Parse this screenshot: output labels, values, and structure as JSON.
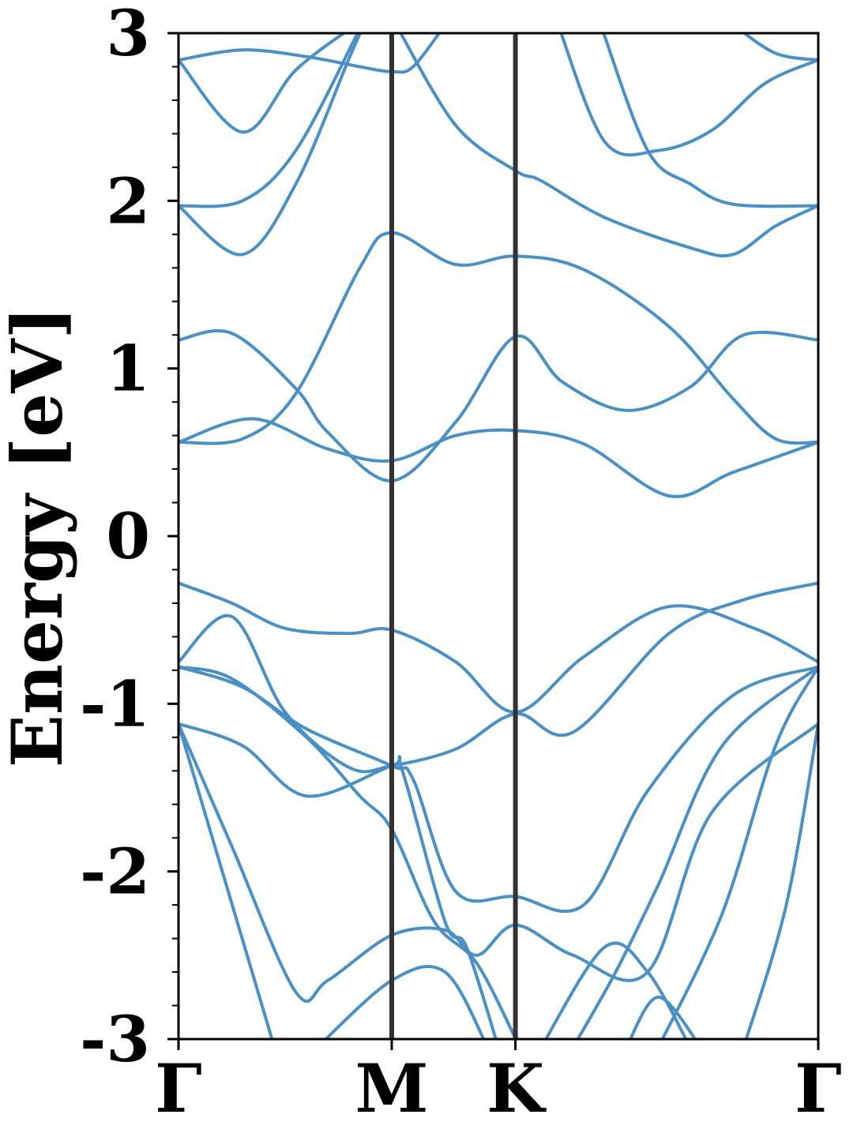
{
  "chart_data": {
    "type": "line",
    "title": "",
    "xlabel": "",
    "ylabel": "Energy [eV]",
    "ylim": [
      -3,
      3
    ],
    "x_range": [
      0,
      3
    ],
    "y_ticks": [
      -3,
      -2,
      -1,
      0,
      1,
      2,
      3
    ],
    "y_tick_labels": [
      "-3",
      "-2",
      "-1",
      "0",
      "1",
      "2",
      "3"
    ],
    "y_minor_step": 0.2,
    "high_symmetry_points": [
      {
        "label": "Γ",
        "x": 0
      },
      {
        "label": "M",
        "x": 1
      },
      {
        "label": "K",
        "x": 1.58
      },
      {
        "label": "Γ",
        "x": 3
      }
    ],
    "grid": false,
    "legend": "none",
    "colors": {
      "bands": "#4a90c4",
      "kpoint_lines": "#333333",
      "axes": "#000000"
    },
    "series": [
      {
        "values": [
          [
            0,
            2.84
          ],
          [
            0.3,
            2.41
          ],
          [
            0.55,
            2.78
          ],
          [
            0.83,
            3.05
          ]
        ]
      },
      {
        "values": [
          [
            0,
            2.84
          ],
          [
            0.3,
            2.9
          ],
          [
            0.6,
            2.86
          ],
          [
            0.85,
            2.8
          ],
          [
            1,
            2.77
          ],
          [
            1.1,
            2.8
          ],
          [
            1.25,
            3.05
          ]
        ]
      },
      {
        "values": [
          [
            0,
            1.97
          ],
          [
            0.3,
            2.0
          ],
          [
            0.55,
            2.3
          ],
          [
            0.84,
            3.0
          ]
        ]
      },
      {
        "values": [
          [
            0,
            1.97
          ],
          [
            0.3,
            1.68
          ],
          [
            0.55,
            2.1
          ],
          [
            0.8,
            2.85
          ],
          [
            0.87,
            3.05
          ]
        ]
      },
      {
        "values": [
          [
            1.02,
            3.05
          ],
          [
            1.3,
            2.45
          ],
          [
            1.58,
            2.18
          ],
          [
            1.7,
            2.12
          ],
          [
            2,
            1.9
          ],
          [
            2.4,
            1.72
          ],
          [
            2.6,
            1.68
          ],
          [
            2.8,
            1.85
          ],
          [
            3,
            1.97
          ]
        ]
      },
      {
        "values": [
          [
            1.78,
            3.05
          ],
          [
            2,
            2.35
          ],
          [
            2.25,
            2.3
          ],
          [
            2.5,
            2.42
          ],
          [
            2.75,
            2.7
          ],
          [
            3,
            2.84
          ]
        ]
      },
      {
        "values": [
          [
            1.98,
            3.05
          ],
          [
            2.2,
            2.3
          ],
          [
            2.4,
            2.1
          ],
          [
            2.6,
            1.98
          ],
          [
            3,
            1.97
          ]
        ]
      },
      {
        "values": [
          [
            2.6,
            3.05
          ],
          [
            2.8,
            2.88
          ],
          [
            3,
            2.84
          ]
        ]
      },
      {
        "values": [
          [
            0,
            1.17
          ],
          [
            0.25,
            1.21
          ],
          [
            0.55,
            0.88
          ],
          [
            0.7,
            0.62
          ],
          [
            1,
            0.33
          ],
          [
            1.3,
            0.68
          ],
          [
            1.58,
            1.19
          ],
          [
            1.8,
            0.92
          ],
          [
            2.1,
            0.75
          ],
          [
            2.4,
            0.89
          ],
          [
            2.65,
            1.2
          ],
          [
            3,
            1.17
          ]
        ]
      },
      {
        "values": [
          [
            0,
            0.56
          ],
          [
            0.3,
            0.58
          ],
          [
            0.55,
            0.85
          ],
          [
            0.85,
            1.6
          ],
          [
            1,
            1.81
          ],
          [
            1.3,
            1.62
          ],
          [
            1.58,
            1.67
          ],
          [
            1.9,
            1.59
          ],
          [
            2.3,
            1.25
          ],
          [
            2.6,
            0.82
          ],
          [
            2.8,
            0.58
          ],
          [
            3,
            0.56
          ]
        ]
      },
      {
        "values": [
          [
            0,
            0.56
          ],
          [
            0.35,
            0.7
          ],
          [
            0.7,
            0.52
          ],
          [
            1,
            0.45
          ],
          [
            1.3,
            0.6
          ],
          [
            1.58,
            0.63
          ],
          [
            1.9,
            0.55
          ],
          [
            2.3,
            0.24
          ],
          [
            2.6,
            0.38
          ],
          [
            3,
            0.56
          ]
        ]
      },
      {
        "values": [
          [
            0,
            -0.28
          ],
          [
            0.25,
            -0.4
          ],
          [
            0.5,
            -0.55
          ],
          [
            0.8,
            -0.58
          ],
          [
            1,
            -0.56
          ],
          [
            1.3,
            -0.75
          ],
          [
            1.58,
            -1.05
          ],
          [
            1.9,
            -0.72
          ],
          [
            2.3,
            -0.42
          ],
          [
            2.7,
            -0.55
          ],
          [
            3,
            -0.75
          ]
        ]
      },
      {
        "values": [
          [
            0,
            -0.75
          ],
          [
            0.25,
            -0.48
          ],
          [
            0.5,
            -1.05
          ],
          [
            0.8,
            -1.38
          ],
          [
            1,
            -1.37
          ],
          [
            1.3,
            -1.27
          ],
          [
            1.58,
            -1.06
          ],
          [
            1.85,
            -1.17
          ],
          [
            2.3,
            -0.58
          ],
          [
            2.65,
            -0.38
          ],
          [
            3,
            -0.28
          ]
        ]
      },
      {
        "values": [
          [
            0,
            -0.78
          ],
          [
            0.3,
            -0.9
          ],
          [
            0.6,
            -1.15
          ],
          [
            1,
            -1.37
          ],
          [
            1.1,
            -1.45
          ],
          [
            1.3,
            -2.12
          ],
          [
            1.58,
            -2.15
          ],
          [
            1.9,
            -2.2
          ],
          [
            2.2,
            -1.52
          ],
          [
            2.6,
            -0.95
          ],
          [
            3,
            -0.78
          ]
        ]
      },
      {
        "values": [
          [
            0,
            -0.78
          ],
          [
            0.25,
            -0.85
          ],
          [
            0.6,
            -1.2
          ],
          [
            0.85,
            -1.55
          ],
          [
            1,
            -1.75
          ],
          [
            1.2,
            -2.3
          ],
          [
            1.4,
            -2.55
          ],
          [
            1.6,
            -3.05
          ]
        ]
      },
      {
        "values": [
          [
            0,
            -1.12
          ],
          [
            0.3,
            -1.25
          ],
          [
            0.6,
            -1.55
          ],
          [
            1,
            -1.37
          ],
          [
            1.05,
            -1.4
          ],
          [
            1.25,
            -2.3
          ],
          [
            1.35,
            -2.45
          ],
          [
            1.5,
            -3.05
          ]
        ]
      },
      {
        "values": [
          [
            0,
            -1.12
          ],
          [
            0.25,
            -1.85
          ],
          [
            0.55,
            -2.72
          ],
          [
            0.7,
            -2.65
          ],
          [
            1,
            -2.38
          ],
          [
            1.25,
            -2.35
          ],
          [
            1.4,
            -2.5
          ],
          [
            1.58,
            -2.32
          ],
          [
            1.85,
            -2.5
          ],
          [
            2.2,
            -2.6
          ],
          [
            2.5,
            -1.65
          ],
          [
            3,
            -1.12
          ]
        ]
      },
      {
        "values": [
          [
            0,
            -1.12
          ],
          [
            0.45,
            -3.05
          ]
        ]
      },
      {
        "values": [
          [
            0.65,
            -3.05
          ],
          [
            1,
            -2.65
          ],
          [
            1.25,
            -2.6
          ],
          [
            1.45,
            -3.05
          ]
        ]
      },
      {
        "values": [
          [
            1.85,
            -3.05
          ],
          [
            2.05,
            -2.6
          ],
          [
            2.25,
            -2.08
          ],
          [
            2.55,
            -1.25
          ],
          [
            3,
            -0.78
          ]
        ]
      },
      {
        "values": [
          [
            2.25,
            -3.05
          ],
          [
            2.55,
            -2.25
          ],
          [
            2.8,
            -1.25
          ],
          [
            3,
            -0.78
          ]
        ]
      },
      {
        "values": [
          [
            2.65,
            -3.05
          ],
          [
            2.85,
            -2.2
          ],
          [
            3,
            -1.12
          ]
        ]
      },
      {
        "values": [
          [
            1.7,
            -3.05
          ],
          [
            2,
            -2.45
          ],
          [
            2.2,
            -2.6
          ],
          [
            2.4,
            -3.05
          ]
        ]
      },
      {
        "values": [
          [
            2.1,
            -3.05
          ],
          [
            2.25,
            -2.75
          ],
          [
            2.45,
            -3.05
          ]
        ]
      }
    ]
  }
}
